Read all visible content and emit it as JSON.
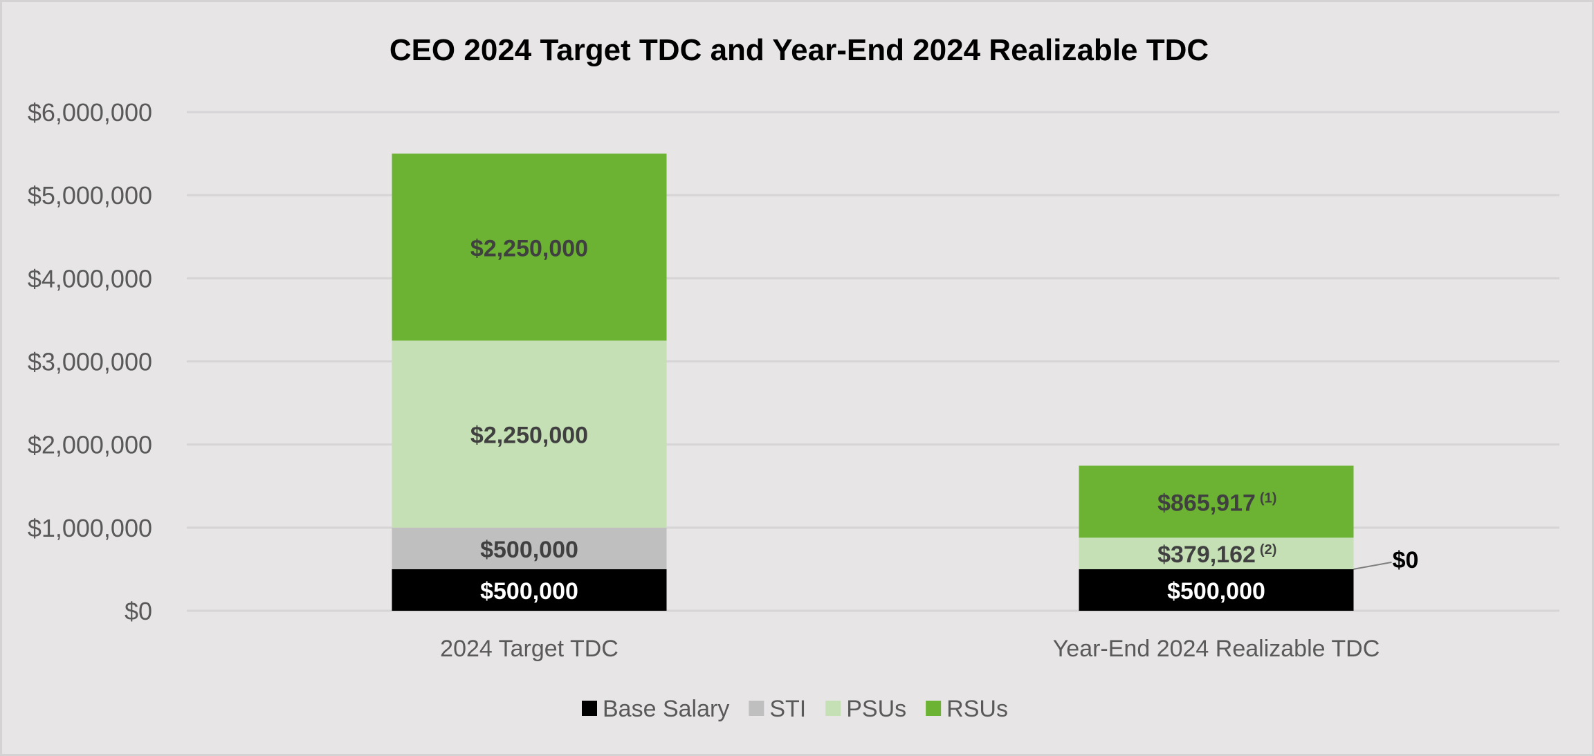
{
  "chart_data": {
    "type": "bar",
    "stacked": true,
    "title": "CEO 2024 Target TDC and Year-End 2024 Realizable TDC",
    "categories": [
      "2024 Target TDC",
      "Year-End 2024 Realizable TDC"
    ],
    "series": [
      {
        "name": "Base Salary",
        "color": "#000000",
        "label_color": "#ffffff",
        "values": [
          500000,
          500000
        ],
        "labels": [
          "$500,000",
          "$500,000"
        ],
        "footnotes": [
          "",
          ""
        ]
      },
      {
        "name": "STI",
        "color": "#bfbfbf",
        "label_color": "#404040",
        "values": [
          500000,
          0
        ],
        "labels": [
          "$500,000",
          "$0"
        ],
        "footnotes": [
          "",
          ""
        ]
      },
      {
        "name": "PSUs",
        "color": "#c5e0b4",
        "label_color": "#404040",
        "values": [
          2250000,
          379162
        ],
        "labels": [
          "$2,250,000",
          "$379,162"
        ],
        "footnotes": [
          "",
          "(2)"
        ]
      },
      {
        "name": "RSUs",
        "color": "#6cb233",
        "label_color": "#404040",
        "values": [
          2250000,
          865917
        ],
        "labels": [
          "$2,250,000",
          "$865,917"
        ],
        "footnotes": [
          "",
          "(1)"
        ]
      }
    ],
    "ylim": [
      0,
      6000000
    ],
    "yticks": [
      "$0",
      "$1,000,000",
      "$2,000,000",
      "$3,000,000",
      "$4,000,000",
      "$5,000,000",
      "$6,000,000"
    ],
    "grid": true,
    "legend": "bottom",
    "xlabel": "",
    "ylabel": ""
  }
}
